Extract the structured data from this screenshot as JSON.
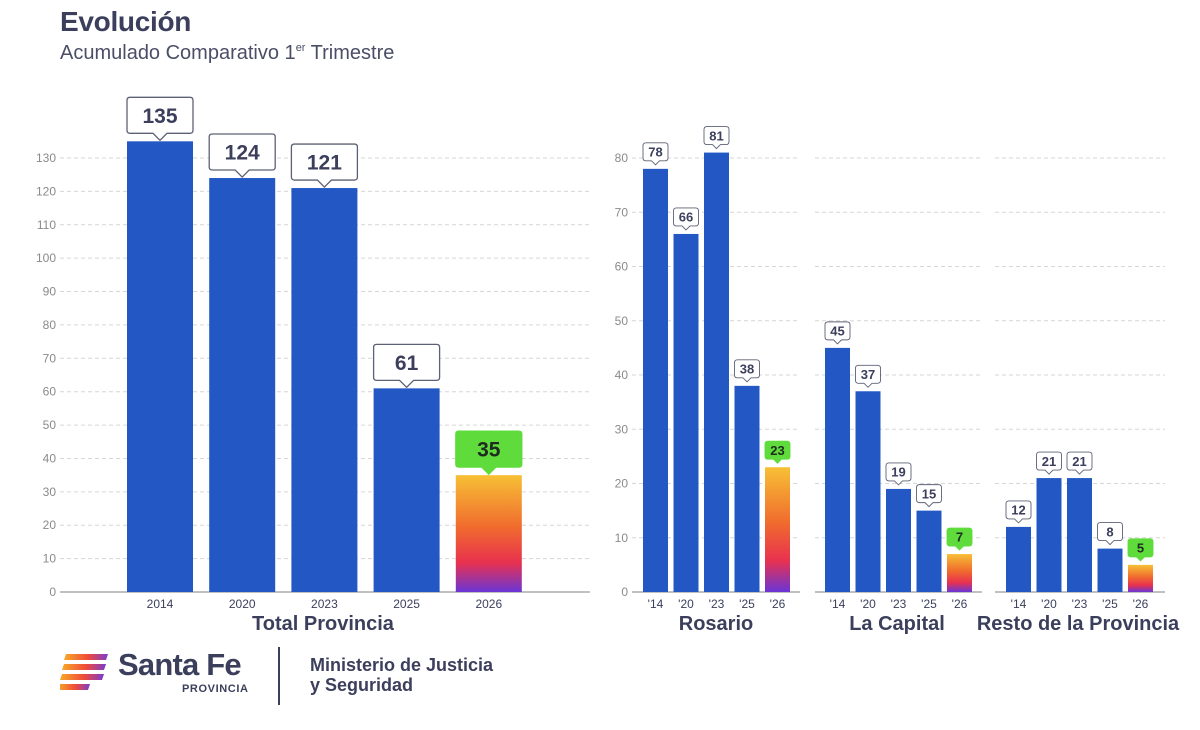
{
  "title": "Evolución",
  "subtitle": "Acumulado Comparativo 1",
  "subtitle_sup": "er",
  "subtitle_tail": " Trimestre",
  "colors": {
    "bar": "#2358c4",
    "highlight_label": "#5fdc3c",
    "gradient": [
      "#f7c035",
      "#f06a2e",
      "#e8314f",
      "#6a35d6"
    ],
    "text": "#3b3f5c"
  },
  "chart_data": [
    {
      "type": "bar",
      "title": "",
      "xlabel": "Total Provincia",
      "ylabel": "",
      "categories": [
        "2014",
        "2020",
        "2023",
        "2025",
        "2026"
      ],
      "values": [
        135,
        124,
        121,
        61,
        35
      ],
      "highlight_index": 4,
      "ylim": [
        0,
        130
      ],
      "yticks": [
        0,
        10,
        20,
        30,
        40,
        50,
        60,
        70,
        80,
        90,
        100,
        110,
        120,
        130
      ]
    },
    {
      "type": "bar",
      "xlabel": "Rosario",
      "categories": [
        "'14",
        "'20",
        "'23",
        "'25",
        "'26"
      ],
      "values": [
        78,
        66,
        81,
        38,
        23
      ],
      "highlight_index": 4,
      "ylim": [
        0,
        80
      ],
      "yticks": [
        0,
        10,
        20,
        30,
        40,
        50,
        60,
        70,
        80
      ]
    },
    {
      "type": "bar",
      "xlabel": "La Capital",
      "categories": [
        "'14",
        "'20",
        "'23",
        "'25",
        "'26"
      ],
      "values": [
        45,
        37,
        19,
        15,
        7
      ],
      "highlight_index": 4,
      "ylim": [
        0,
        80
      ]
    },
    {
      "type": "bar",
      "xlabel": "Resto de la Provincia",
      "categories": [
        "'14",
        "'20",
        "'23",
        "'25",
        "'26"
      ],
      "values": [
        12,
        21,
        21,
        8,
        5
      ],
      "highlight_index": 4,
      "ylim": [
        0,
        80
      ]
    }
  ],
  "footer": {
    "logo_icon": "santa-fe-flag-icon",
    "brand": "Santa Fe",
    "brand_sub": "PROVINCIA",
    "ministry_line1": "Ministerio de Justicia",
    "ministry_line2": "y Seguridad"
  }
}
